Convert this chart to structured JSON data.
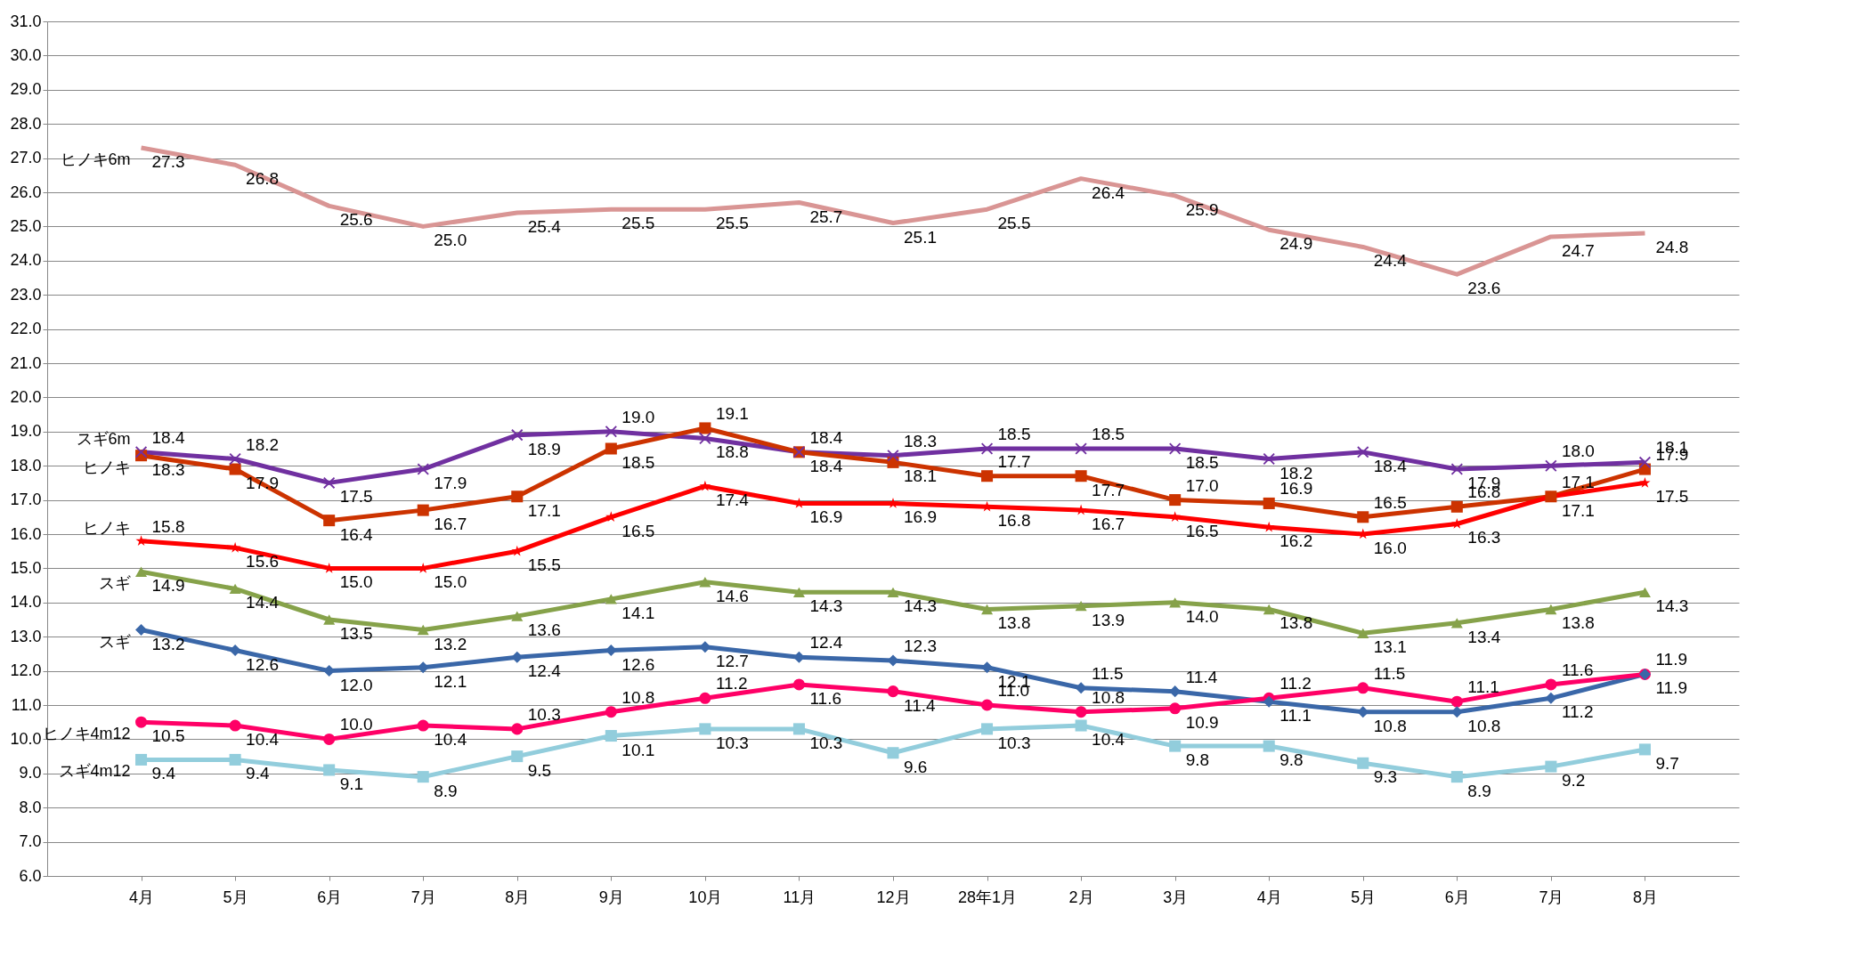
{
  "chart_data": {
    "type": "line",
    "categories": [
      "4月",
      "5月",
      "6月",
      "7月",
      "8月",
      "9月",
      "10月",
      "11月",
      "12月",
      "28年1月",
      "2月",
      "3月",
      "4月",
      "5月",
      "6月",
      "7月",
      "8月"
    ],
    "series": [
      {
        "name": "ヒノキ6m",
        "color": "#d99594",
        "marker": "none",
        "values": [
          27.3,
          26.8,
          25.6,
          25.0,
          25.4,
          25.5,
          25.5,
          25.7,
          25.1,
          25.5,
          26.4,
          25.9,
          24.9,
          24.4,
          23.6,
          24.7,
          24.8
        ],
        "value_labels": [
          "27.3",
          "26.8",
          "25.6",
          "25.0",
          "25.4",
          "25.5",
          "25.5",
          "25.7",
          "25.1",
          "25.5",
          "26.4",
          "25.9",
          "24.9",
          "24.4",
          "23.6",
          "24.7",
          "24.8"
        ]
      },
      {
        "name": "スギ6m",
        "color": "#7030a0",
        "marker": "cross",
        "values": [
          18.4,
          18.2,
          17.5,
          17.9,
          18.9,
          19.0,
          18.8,
          18.4,
          18.3,
          18.5,
          18.5,
          18.5,
          18.2,
          18.4,
          17.9,
          18.0,
          18.1
        ],
        "value_labels": [
          "18.4",
          "18.2",
          "17.5",
          "17.9",
          "18.9",
          "19.0",
          "18.8",
          "18.4",
          "18.3",
          "18.5",
          "18.5",
          "18.5",
          "18.2",
          "18.4",
          "17.9",
          "18.0",
          "18.1"
        ]
      },
      {
        "name": "ヒノキ",
        "color": "#cc3300",
        "marker": "square",
        "values": [
          18.3,
          17.9,
          16.4,
          16.7,
          17.1,
          18.5,
          19.1,
          18.4,
          18.1,
          17.7,
          17.7,
          17.0,
          16.9,
          16.5,
          16.8,
          17.1,
          17.9
        ],
        "value_labels": [
          "18.3",
          "17.9",
          "16.4",
          "16.7",
          "17.1",
          "18.5",
          "19.1",
          "18.4",
          "18.1",
          "17.7",
          "17.7",
          "17.0",
          "16.9",
          "16.5",
          "16.8",
          "17.1",
          "17.9"
        ]
      },
      {
        "name": "ヒノキ",
        "color": "#ff0000",
        "marker": "star",
        "values": [
          15.8,
          15.6,
          15.0,
          15.0,
          15.5,
          16.5,
          17.4,
          16.9,
          16.9,
          16.8,
          16.7,
          16.5,
          16.2,
          16.0,
          16.3,
          17.1,
          17.5
        ],
        "value_labels": [
          "15.8",
          "15.6",
          "15.0",
          "15.0",
          "15.5",
          "16.5",
          "17.4",
          "16.9",
          "16.9",
          "16.8",
          "16.7",
          "16.5",
          "16.2",
          "16.0",
          "16.3",
          "17.1",
          "17.5"
        ]
      },
      {
        "name": "スギ",
        "color": "#86a24a",
        "marker": "triangle",
        "values": [
          14.9,
          14.4,
          13.5,
          13.2,
          13.6,
          14.1,
          14.6,
          14.3,
          14.3,
          13.8,
          13.9,
          14.0,
          13.8,
          13.1,
          13.4,
          13.8,
          14.3
        ],
        "value_labels": [
          "14.9",
          "14.4",
          "13.5",
          "13.2",
          "13.6",
          "14.1",
          "14.6",
          "14.3",
          "14.3",
          "13.8",
          "13.9",
          "14.0",
          "13.8",
          "13.1",
          "13.4",
          "13.8",
          "14.3"
        ]
      },
      {
        "name": "スギ",
        "color": "#3a67a8",
        "marker": "diamond",
        "values": [
          13.2,
          12.6,
          12.0,
          12.1,
          12.4,
          12.6,
          12.7,
          12.4,
          12.3,
          12.1,
          11.5,
          11.4,
          11.1,
          10.8,
          10.8,
          11.2,
          11.9
        ],
        "value_labels": [
          "13.2",
          "12.6",
          "12.0",
          "12.1",
          "12.4",
          "12.6",
          "12.7",
          "12.4",
          "12.3",
          "12.1",
          "11.5",
          "11.4",
          "11.1",
          "10.8",
          "10.8",
          "11.2",
          "11.9"
        ]
      },
      {
        "name": "ヒノキ4m12",
        "color": "#ff0066",
        "marker": "circle",
        "values": [
          10.5,
          10.4,
          10.0,
          10.4,
          10.3,
          10.8,
          11.2,
          11.6,
          11.4,
          11.0,
          10.8,
          10.9,
          11.2,
          11.5,
          11.1,
          11.6,
          11.9
        ],
        "value_labels": [
          "10.5",
          "10.4",
          "10.0",
          "10.4",
          "10.3",
          "10.8",
          "11.2",
          "11.6",
          "11.4",
          "11.0",
          "10.8",
          "10.9",
          "11.2",
          "11.5",
          "11.1",
          "11.6",
          "11.9"
        ]
      },
      {
        "name": "スギ4m12",
        "color": "#92cddc",
        "marker": "square",
        "values": [
          9.4,
          9.4,
          9.1,
          8.9,
          9.5,
          10.1,
          10.3,
          10.3,
          9.6,
          10.3,
          10.4,
          9.8,
          9.8,
          9.3,
          8.9,
          9.2,
          9.7
        ],
        "value_labels": [
          "9.4",
          "9.4",
          "9.1",
          "8.9",
          "9.5",
          "10.1",
          "10.3",
          "10.3",
          "9.6",
          "10.3",
          "10.4",
          "9.8",
          "9.8",
          "9.3",
          "8.9",
          "9.2",
          "9.7"
        ]
      }
    ],
    "ylim": [
      6,
      31
    ],
    "yticks": [
      {
        "value": 6,
        "label": "6.0"
      },
      {
        "value": 7,
        "label": "7.0"
      },
      {
        "value": 8,
        "label": "8.0"
      },
      {
        "value": 9,
        "label": "9.0"
      },
      {
        "value": 10,
        "label": "10.0"
      },
      {
        "value": 11,
        "label": "11.0"
      },
      {
        "value": 12,
        "label": "12.0"
      },
      {
        "value": 13,
        "label": "13.0"
      },
      {
        "value": 14,
        "label": "14.0"
      },
      {
        "value": 15,
        "label": "15.0"
      },
      {
        "value": 16,
        "label": "16.0"
      },
      {
        "value": 17,
        "label": "17.0"
      },
      {
        "value": 18,
        "label": "18.0"
      },
      {
        "value": 19,
        "label": "19.0"
      },
      {
        "value": 20,
        "label": "20.0"
      },
      {
        "value": 21,
        "label": "21.0"
      },
      {
        "value": 22,
        "label": "22.0"
      },
      {
        "value": 23,
        "label": "23.0"
      },
      {
        "value": 24,
        "label": "24.0"
      },
      {
        "value": 25,
        "label": "25.0"
      },
      {
        "value": 26,
        "label": "26.0"
      },
      {
        "value": 27,
        "label": "27.0"
      },
      {
        "value": 28,
        "label": "28.0"
      },
      {
        "value": 29,
        "label": "29.0"
      },
      {
        "value": 30,
        "label": "30.0"
      },
      {
        "value": 31,
        "label": "31.0"
      }
    ],
    "grid": "y",
    "legend": false
  }
}
